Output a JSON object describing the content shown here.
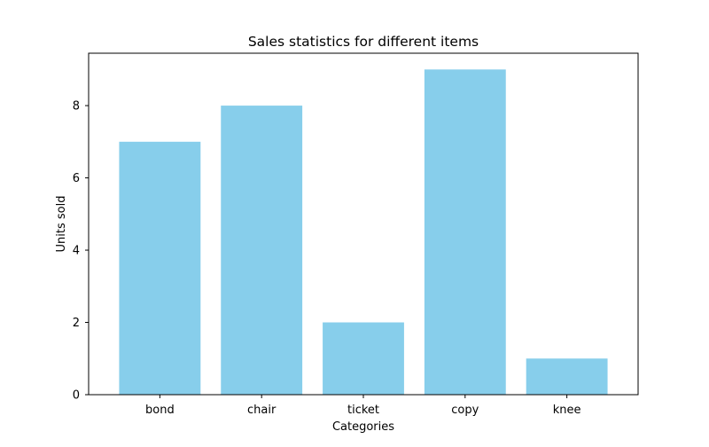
{
  "chart_data": {
    "type": "bar",
    "title": "Sales statistics for different items",
    "xlabel": "Categories",
    "ylabel": "Units sold",
    "categories": [
      "bond",
      "chair",
      "ticket",
      "copy",
      "knee"
    ],
    "values": [
      7,
      8,
      2,
      9,
      1
    ],
    "ylim": [
      0,
      9.45
    ],
    "yticks": [
      0,
      2,
      4,
      6,
      8
    ],
    "grid": false,
    "bar_color": "#87ceeb"
  }
}
